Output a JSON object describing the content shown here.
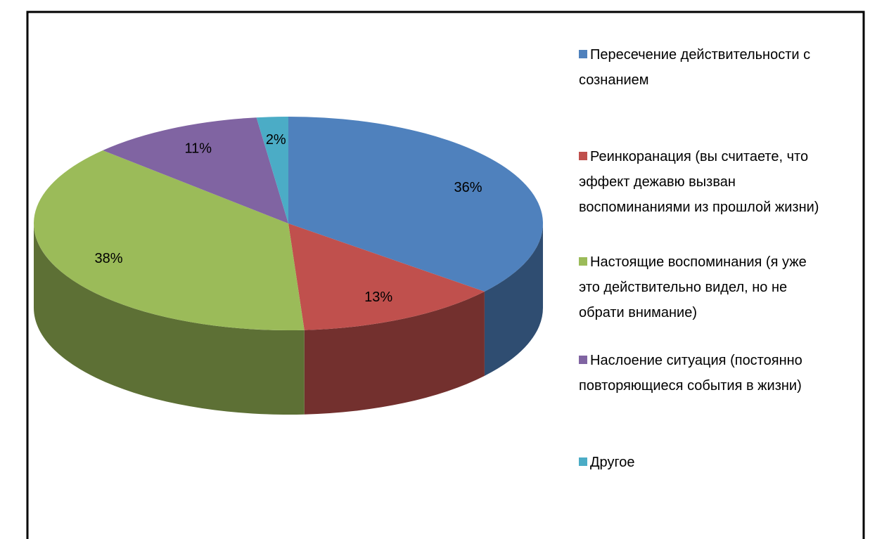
{
  "chart_data": {
    "type": "pie",
    "categories": [
      "Пересечение действительности с сознанием",
      "Реинкоранация (вы считаете, что эффект дежавю вызван воспоминаниями из прошлой жизни)",
      "Настоящие воспоминания (я уже это действительно видел, но не обрати внимание)",
      "Наслоение ситуация (постоянно повторяющиеся события в жизни)",
      "Другое"
    ],
    "values": [
      36,
      13,
      38,
      11,
      2
    ],
    "value_labels": [
      "36%",
      "13%",
      "38%",
      "11%",
      "2%"
    ],
    "colors": [
      "#4f81bd",
      "#c0504d",
      "#9bbb59",
      "#8064a2",
      "#4bacc6"
    ],
    "legend": "right"
  }
}
